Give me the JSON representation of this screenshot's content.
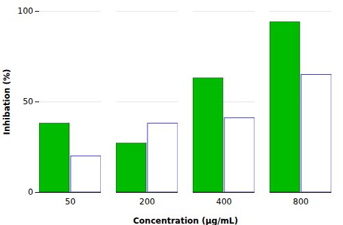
{
  "chart_data": {
    "type": "bar",
    "categories": [
      "50",
      "200",
      "400",
      "800"
    ],
    "series": [
      {
        "color": "#00bb00",
        "values": [
          38,
          27,
          63,
          94
        ]
      },
      {
        "color": "#0000cc",
        "values": [
          20,
          38,
          41,
          65
        ]
      }
    ],
    "xlabel": "Concentration (μg/mL)",
    "ylabel": "Inhibation (%)",
    "ylim": [
      0,
      100
    ],
    "yticks": [
      0,
      50,
      100
    ],
    "grid": true
  }
}
